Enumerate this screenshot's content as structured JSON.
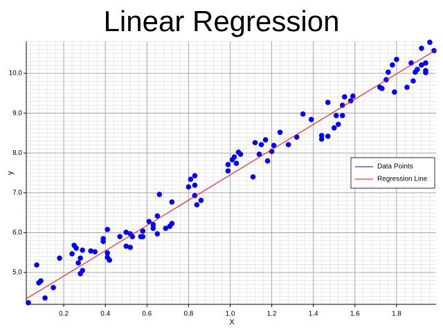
{
  "chart_data": {
    "type": "scatter",
    "title": "Linear Regression",
    "x_label": "X",
    "y_label": "y",
    "xlim": [
      0.02,
      1.99
    ],
    "ylim": [
      4.2,
      10.8
    ],
    "xticks": [
      0.2,
      0.4,
      0.6,
      0.8,
      {
        "value": 1.0,
        "label": "1.0"
      },
      1.2,
      1.4,
      1.6,
      1.8
    ],
    "yticks": [
      {
        "value": 5.0,
        "label": "5.0"
      },
      {
        "value": 6.0,
        "label": "6.0"
      },
      {
        "value": 7.0,
        "label": "7.0"
      },
      {
        "value": 8.0,
        "label": "8.0"
      },
      {
        "value": 9.0,
        "label": "9.0"
      },
      {
        "value": 10.0,
        "label": "10.0"
      }
    ],
    "grid": true,
    "minor_grid": true,
    "legend_position": "right",
    "series": [
      {
        "name": "Data Points",
        "color": "#0000ff",
        "style": "markers",
        "x": [
          0.03,
          0.07,
          0.08,
          0.09,
          0.11,
          0.15,
          0.18,
          0.24,
          0.25,
          0.26,
          0.27,
          0.28,
          0.28,
          0.29,
          0.29,
          0.33,
          0.35,
          0.39,
          0.39,
          0.41,
          0.41,
          0.41,
          0.42,
          0.47,
          0.5,
          0.5,
          0.52,
          0.52,
          0.53,
          0.57,
          0.58,
          0.58,
          0.61,
          0.63,
          0.63,
          0.65,
          0.65,
          0.66,
          0.69,
          0.71,
          0.72,
          0.72,
          0.8,
          0.81,
          0.83,
          0.83,
          0.83,
          0.84,
          0.86,
          0.99,
          0.99,
          1.01,
          1.02,
          1.03,
          1.04,
          1.05,
          1.11,
          1.12,
          1.14,
          1.15,
          1.17,
          1.18,
          1.2,
          1.21,
          1.24,
          1.28,
          1.32,
          1.35,
          1.39,
          1.44,
          1.44,
          1.47,
          1.47,
          1.5,
          1.51,
          1.52,
          1.54,
          1.54,
          1.55,
          1.58,
          1.59,
          1.72,
          1.73,
          1.75,
          1.76,
          1.78,
          1.79,
          1.8,
          1.85,
          1.87,
          1.88,
          1.89,
          1.9,
          1.92,
          1.92,
          1.94,
          1.94,
          1.94,
          1.96,
          1.98
        ],
        "values": [
          4.24,
          5.19,
          4.74,
          4.79,
          4.36,
          4.62,
          5.36,
          5.47,
          5.68,
          5.61,
          5.24,
          5.36,
          4.97,
          5.05,
          5.56,
          5.54,
          5.52,
          5.78,
          5.85,
          6.08,
          5.49,
          5.38,
          5.31,
          5.9,
          6.01,
          5.66,
          5.63,
          5.97,
          5.9,
          5.9,
          6.04,
          5.9,
          6.28,
          6.2,
          6.11,
          5.97,
          6.42,
          6.96,
          6.11,
          6.16,
          6.23,
          6.77,
          7.15,
          7.34,
          7.43,
          7.19,
          6.93,
          6.7,
          6.81,
          7.55,
          7.71,
          7.83,
          7.9,
          7.74,
          8.02,
          7.97,
          7.4,
          8.26,
          7.97,
          8.21,
          8.33,
          7.8,
          8.04,
          8.19,
          8.52,
          8.21,
          8.4,
          8.98,
          8.84,
          8.44,
          8.35,
          8.42,
          9.27,
          8.63,
          8.94,
          8.72,
          8.94,
          9.2,
          9.41,
          9.31,
          9.43,
          9.65,
          9.62,
          9.84,
          10.03,
          10.21,
          9.53,
          10.35,
          9.65,
          10.26,
          9.81,
          10.03,
          10.1,
          10.63,
          10.21,
          10.26,
          10.02,
          10.07,
          10.78,
          10.57
        ]
      },
      {
        "name": "Regression Line",
        "color": "#ff0000",
        "style": "line",
        "x": [
          0.02,
          1.99
        ],
        "values": [
          4.34,
          10.59
        ]
      }
    ]
  }
}
